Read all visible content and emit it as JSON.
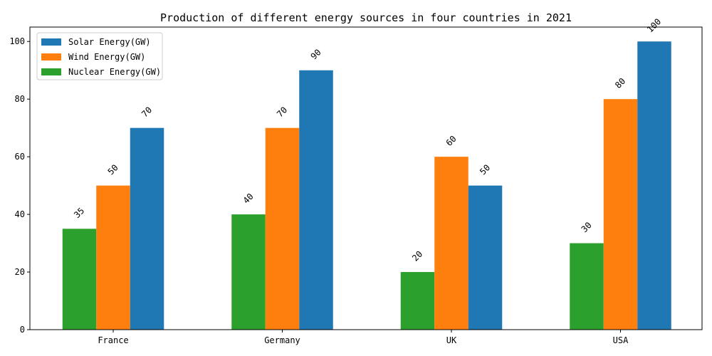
{
  "chart_data": {
    "type": "bar",
    "title": "Production of different energy sources in four countries in 2021",
    "xlabel": "",
    "ylabel": "",
    "categories": [
      "France",
      "Germany",
      "UK",
      "USA"
    ],
    "series": [
      {
        "name": "Nuclear Energy(GW)",
        "values": [
          35,
          40,
          20,
          30
        ],
        "color": "#2ca02c"
      },
      {
        "name": "Wind Energy(GW)",
        "values": [
          50,
          70,
          60,
          80
        ],
        "color": "#ff7f0e"
      },
      {
        "name": "Solar Energy(GW)",
        "values": [
          70,
          90,
          50,
          100
        ],
        "color": "#1f77b4"
      }
    ],
    "legend_order": [
      "Solar Energy(GW)",
      "Wind Energy(GW)",
      "Nuclear Energy(GW)"
    ],
    "legend_position": "top-left",
    "ylim": [
      0,
      105
    ],
    "yticks": [
      0,
      20,
      40,
      60,
      80,
      100
    ],
    "grid": false,
    "data_labels_rotated": true
  }
}
